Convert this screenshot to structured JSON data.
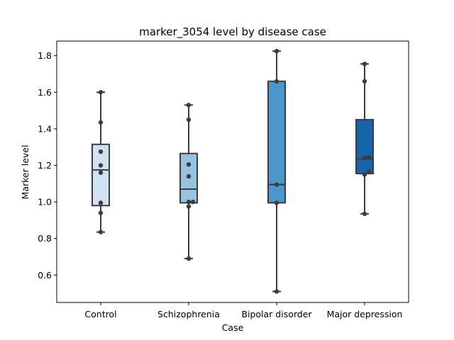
{
  "chart_data": {
    "type": "box",
    "title": "marker_3054 level by disease case",
    "xlabel": "Case",
    "ylabel": "Marker level",
    "ylim": [
      0.45,
      1.88
    ],
    "yticks": [
      0.6,
      0.8,
      1.0,
      1.2,
      1.4,
      1.6,
      1.8
    ],
    "ytick_labels": [
      "0.6",
      "0.8",
      "1.0",
      "1.2",
      "1.4",
      "1.6",
      "1.8"
    ],
    "grid": false,
    "categories": [
      "Control",
      "Schizophrenia",
      "Bipolar disorder",
      "Major depression"
    ],
    "boxes": [
      {
        "category": "Control",
        "color": "#d0e1f2",
        "whisker_low": 0.835,
        "q1": 0.98,
        "median": 1.175,
        "q3": 1.315,
        "whisker_high": 1.6,
        "points": [
          0.835,
          0.94,
          0.995,
          1.16,
          1.2,
          1.275,
          1.435,
          1.6
        ]
      },
      {
        "category": "Schizophrenia",
        "color": "#94c4df",
        "whisker_low": 0.69,
        "q1": 0.995,
        "median": 1.07,
        "q3": 1.265,
        "whisker_high": 1.53,
        "points": [
          0.69,
          0.975,
          1.0,
          1.0,
          1.14,
          1.205,
          1.45,
          1.53
        ]
      },
      {
        "category": "Bipolar disorder",
        "color": "#4a98c9",
        "whisker_low": 0.51,
        "q1": 0.995,
        "median": 1.095,
        "q3": 1.66,
        "whisker_high": 1.825,
        "points": [
          0.51,
          0.995,
          1.095,
          1.66,
          1.825
        ]
      },
      {
        "category": "Major depression",
        "color": "#1764ab",
        "whisker_low": 0.935,
        "q1": 1.155,
        "median": 1.235,
        "q3": 1.45,
        "whisker_high": 1.755,
        "points": [
          0.935,
          1.15,
          1.165,
          1.24,
          1.245,
          1.66,
          1.755
        ]
      }
    ]
  }
}
